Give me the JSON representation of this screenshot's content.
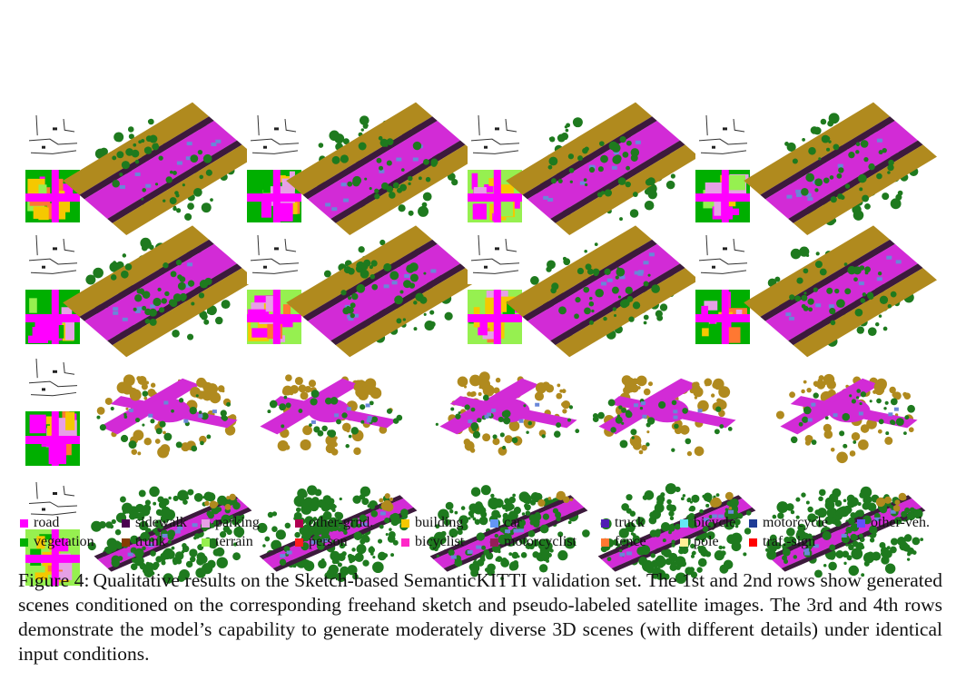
{
  "legend": [
    {
      "label": "road",
      "color": "#ff00ff"
    },
    {
      "label": "sidewalk",
      "color": "#4b0050"
    },
    {
      "label": "parking",
      "color": "#e6a0e6"
    },
    {
      "label": "other-grnd.",
      "color": "#af0050"
    },
    {
      "label": "building",
      "color": "#f5c800"
    },
    {
      "label": "car",
      "color": "#6496f5"
    },
    {
      "label": "truck",
      "color": "#501eb4"
    },
    {
      "label": "bicycle",
      "color": "#64e6f5"
    },
    {
      "label": "motorcycle",
      "color": "#1e3c96"
    },
    {
      "label": "other-veh.",
      "color": "#6450fa"
    },
    {
      "label": "vegetation",
      "color": "#00af00"
    },
    {
      "label": "trunk",
      "color": "#873c00"
    },
    {
      "label": "terrain",
      "color": "#96f050"
    },
    {
      "label": "person",
      "color": "#ff1e1e"
    },
    {
      "label": "bicyclist",
      "color": "#ff28c8"
    },
    {
      "label": "motorcyclist",
      "color": "#961e5a"
    },
    {
      "label": "fence",
      "color": "#ff7832"
    },
    {
      "label": "pole",
      "color": "#fff096"
    },
    {
      "label": "traf.-sign",
      "color": "#ff0000"
    }
  ],
  "scene_colors": {
    "road": "#d22bd6",
    "sidewalk": "#3c1a3c",
    "building": "#b08a1e",
    "vegetation": "#1e7a1e",
    "car": "#6a87d8"
  },
  "caption": {
    "label": "Figure 4:",
    "text": "Qualitative results on the Sketch-based SemanticKITTI validation set. The 1st and 2nd rows show generated scenes conditioned on the corresponding freehand sketch and pseudo-labeled satellite images. The 3rd and 4th rows demonstrate the model’s capability to generate moderately diverse 3D scenes (with different details) under identical input conditions."
  }
}
